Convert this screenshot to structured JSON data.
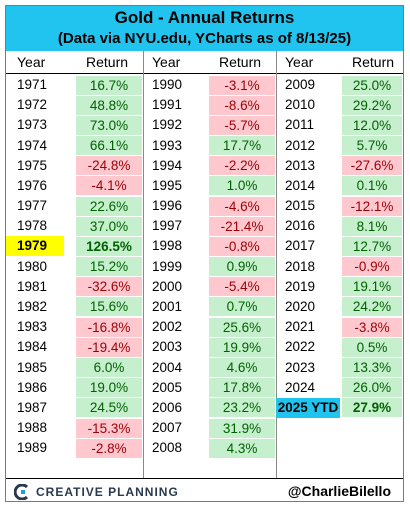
{
  "header": {
    "title": "Gold - Annual Returns",
    "subtitle": "(Data via NYU.edu, YCharts as of 8/13/25)"
  },
  "column_headers": {
    "year": "Year",
    "ret": "Return"
  },
  "footer": {
    "brand": "CREATIVE PLANNING",
    "handle": "@CharlieBilello"
  },
  "colors": {
    "header_bg": "#20c4ee",
    "highlight_1979": "#ffff00",
    "highlight_2025": "#20c4ee",
    "positive_bg": "#c6efce",
    "positive_text": "#006100",
    "negative_bg": "#ffc7ce",
    "negative_text": "#9c0006"
  },
  "chart_data": {
    "type": "table",
    "title": "Gold - Annual Returns",
    "subtitle": "(Data via NYU.edu, YCharts as of 8/13/25)",
    "columns": [
      "Year",
      "Return"
    ],
    "rows": [
      {
        "year": "1971",
        "ret": "16.7%"
      },
      {
        "year": "1972",
        "ret": "48.8%"
      },
      {
        "year": "1973",
        "ret": "73.0%"
      },
      {
        "year": "1974",
        "ret": "66.1%"
      },
      {
        "year": "1975",
        "ret": "-24.8%"
      },
      {
        "year": "1976",
        "ret": "-4.1%"
      },
      {
        "year": "1977",
        "ret": "22.6%"
      },
      {
        "year": "1978",
        "ret": "37.0%"
      },
      {
        "year": "1979",
        "ret": "126.5%",
        "highlight": true
      },
      {
        "year": "1980",
        "ret": "15.2%"
      },
      {
        "year": "1981",
        "ret": "-32.6%"
      },
      {
        "year": "1982",
        "ret": "15.6%"
      },
      {
        "year": "1983",
        "ret": "-16.8%"
      },
      {
        "year": "1984",
        "ret": "-19.4%"
      },
      {
        "year": "1985",
        "ret": "6.0%"
      },
      {
        "year": "1986",
        "ret": "19.0%"
      },
      {
        "year": "1987",
        "ret": "24.5%"
      },
      {
        "year": "1988",
        "ret": "-15.3%"
      },
      {
        "year": "1989",
        "ret": "-2.8%"
      },
      {
        "year": "1990",
        "ret": "-3.1%"
      },
      {
        "year": "1991",
        "ret": "-8.6%"
      },
      {
        "year": "1992",
        "ret": "-5.7%"
      },
      {
        "year": "1993",
        "ret": "17.7%"
      },
      {
        "year": "1994",
        "ret": "-2.2%"
      },
      {
        "year": "1995",
        "ret": "1.0%"
      },
      {
        "year": "1996",
        "ret": "-4.6%"
      },
      {
        "year": "1997",
        "ret": "-21.4%"
      },
      {
        "year": "1998",
        "ret": "-0.8%"
      },
      {
        "year": "1999",
        "ret": "0.9%"
      },
      {
        "year": "2000",
        "ret": "-5.4%"
      },
      {
        "year": "2001",
        "ret": "0.7%"
      },
      {
        "year": "2002",
        "ret": "25.6%"
      },
      {
        "year": "2003",
        "ret": "19.9%"
      },
      {
        "year": "2004",
        "ret": "4.6%"
      },
      {
        "year": "2005",
        "ret": "17.8%"
      },
      {
        "year": "2006",
        "ret": "23.2%"
      },
      {
        "year": "2007",
        "ret": "31.9%"
      },
      {
        "year": "2008",
        "ret": "4.3%"
      },
      {
        "year": "2009",
        "ret": "25.0%"
      },
      {
        "year": "2010",
        "ret": "29.2%"
      },
      {
        "year": "2011",
        "ret": "12.0%"
      },
      {
        "year": "2012",
        "ret": "5.7%"
      },
      {
        "year": "2013",
        "ret": "-27.6%"
      },
      {
        "year": "2014",
        "ret": "0.1%"
      },
      {
        "year": "2015",
        "ret": "-12.1%"
      },
      {
        "year": "2016",
        "ret": "8.1%"
      },
      {
        "year": "2017",
        "ret": "12.7%"
      },
      {
        "year": "2018",
        "ret": "-0.9%"
      },
      {
        "year": "2019",
        "ret": "19.1%"
      },
      {
        "year": "2020",
        "ret": "24.2%"
      },
      {
        "year": "2021",
        "ret": "-3.8%"
      },
      {
        "year": "2022",
        "ret": "0.5%"
      },
      {
        "year": "2023",
        "ret": "13.3%"
      },
      {
        "year": "2024",
        "ret": "26.0%"
      },
      {
        "year": "2025 YTD",
        "ret": "27.9%",
        "highlight": true
      }
    ]
  }
}
